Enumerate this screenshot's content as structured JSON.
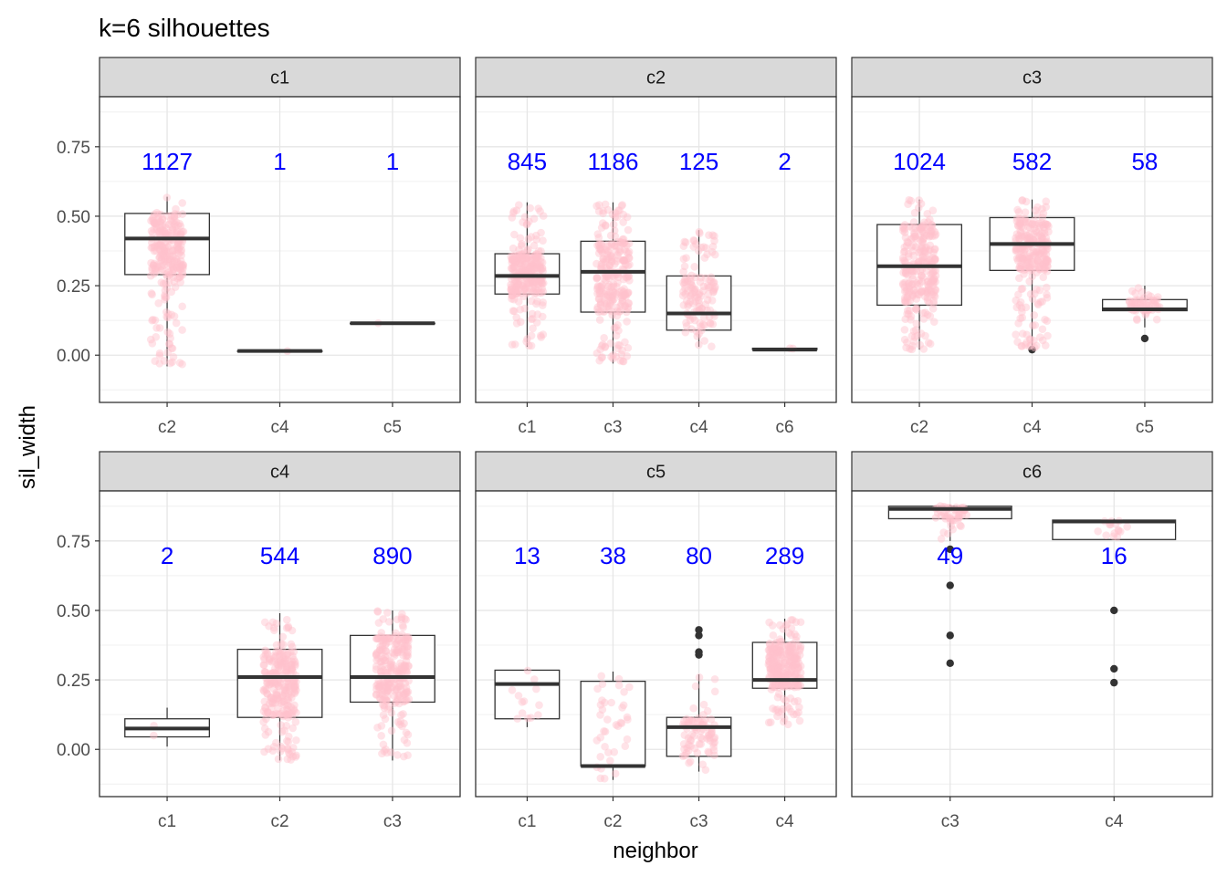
{
  "title": "k=6 silhouettes",
  "chart_data": {
    "type": "box",
    "title": "k=6 silhouettes",
    "xlabel": "neighbor",
    "ylabel": "sil_width",
    "ylim": [
      -0.17,
      0.93
    ],
    "y_ticks": [
      "0.00",
      "0.25",
      "0.50",
      "0.75"
    ],
    "grid": true,
    "point_color": "#ffc0cb",
    "count_color": "#0000ff",
    "panels": [
      {
        "cluster": "c1",
        "groups": [
          {
            "neighbor": "c2",
            "n": "1127",
            "q1": 0.29,
            "median": 0.42,
            "q3": 0.51,
            "min": -0.04,
            "max": 0.57,
            "outliers": []
          },
          {
            "neighbor": "c4",
            "n": "1",
            "q1": 0.015,
            "median": 0.015,
            "q3": 0.015,
            "min": 0.015,
            "max": 0.015,
            "outliers": []
          },
          {
            "neighbor": "c5",
            "n": "1",
            "q1": 0.115,
            "median": 0.115,
            "q3": 0.115,
            "min": 0.115,
            "max": 0.115,
            "outliers": []
          }
        ]
      },
      {
        "cluster": "c2",
        "groups": [
          {
            "neighbor": "c1",
            "n": "845",
            "q1": 0.22,
            "median": 0.285,
            "q3": 0.365,
            "min": 0.03,
            "max": 0.55,
            "outliers": []
          },
          {
            "neighbor": "c3",
            "n": "1186",
            "q1": 0.155,
            "median": 0.3,
            "q3": 0.41,
            "min": -0.03,
            "max": 0.55,
            "outliers": []
          },
          {
            "neighbor": "c4",
            "n": "125",
            "q1": 0.09,
            "median": 0.15,
            "q3": 0.285,
            "min": 0.03,
            "max": 0.45,
            "outliers": []
          },
          {
            "neighbor": "c6",
            "n": "2",
            "q1": 0.02,
            "median": 0.02,
            "q3": 0.025,
            "min": 0.02,
            "max": 0.025,
            "outliers": []
          }
        ]
      },
      {
        "cluster": "c3",
        "groups": [
          {
            "neighbor": "c2",
            "n": "1024",
            "q1": 0.18,
            "median": 0.32,
            "q3": 0.47,
            "min": 0.02,
            "max": 0.56,
            "outliers": []
          },
          {
            "neighbor": "c4",
            "n": "582",
            "q1": 0.305,
            "median": 0.4,
            "q3": 0.495,
            "min": 0.02,
            "max": 0.56,
            "outliers": [
              0.02
            ]
          },
          {
            "neighbor": "c5",
            "n": "58",
            "q1": 0.16,
            "median": 0.165,
            "q3": 0.2,
            "min": 0.1,
            "max": 0.25,
            "outliers": [
              0.06
            ]
          }
        ]
      },
      {
        "cluster": "c4",
        "groups": [
          {
            "neighbor": "c1",
            "n": "2",
            "q1": 0.045,
            "median": 0.075,
            "q3": 0.11,
            "min": 0.01,
            "max": 0.15,
            "outliers": []
          },
          {
            "neighbor": "c2",
            "n": "544",
            "q1": 0.115,
            "median": 0.26,
            "q3": 0.36,
            "min": -0.04,
            "max": 0.49,
            "outliers": []
          },
          {
            "neighbor": "c3",
            "n": "890",
            "q1": 0.17,
            "median": 0.26,
            "q3": 0.41,
            "min": -0.04,
            "max": 0.5,
            "outliers": []
          }
        ]
      },
      {
        "cluster": "c5",
        "groups": [
          {
            "neighbor": "c1",
            "n": "13",
            "q1": 0.11,
            "median": 0.235,
            "q3": 0.285,
            "min": 0.08,
            "max": 0.29,
            "outliers": []
          },
          {
            "neighbor": "c2",
            "n": "38",
            "q1": -0.06,
            "median": -0.06,
            "q3": 0.245,
            "min": -0.11,
            "max": 0.28,
            "outliers": []
          },
          {
            "neighbor": "c3",
            "n": "80",
            "q1": -0.025,
            "median": 0.08,
            "q3": 0.115,
            "min": -0.08,
            "max": 0.27,
            "outliers": [
              0.34,
              0.35,
              0.41,
              0.43
            ]
          },
          {
            "neighbor": "c4",
            "n": "289",
            "q1": 0.22,
            "median": 0.25,
            "q3": 0.385,
            "min": 0.09,
            "max": 0.47,
            "outliers": []
          }
        ]
      },
      {
        "cluster": "c6",
        "groups": [
          {
            "neighbor": "c3",
            "n": "49",
            "q1": 0.83,
            "median": 0.865,
            "q3": 0.875,
            "min": 0.75,
            "max": 0.88,
            "outliers": [
              0.72,
              0.59,
              0.41,
              0.31
            ]
          },
          {
            "neighbor": "c4",
            "n": "16",
            "q1": 0.755,
            "median": 0.82,
            "q3": 0.825,
            "min": 0.755,
            "max": 0.83,
            "outliers": [
              0.5,
              0.29,
              0.24
            ]
          }
        ]
      }
    ]
  }
}
